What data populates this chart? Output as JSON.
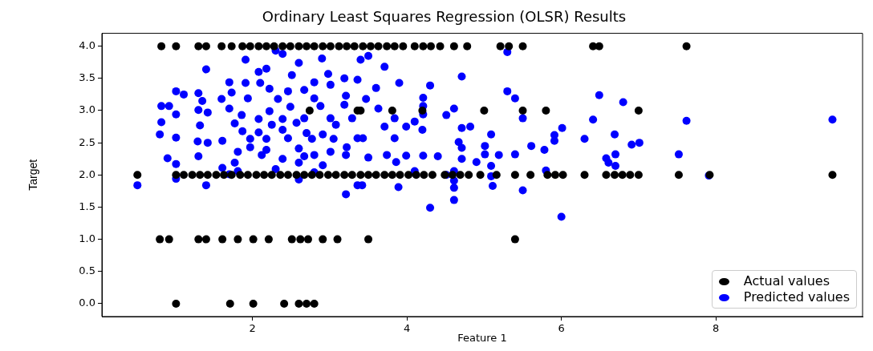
{
  "chart_data": {
    "type": "scatter",
    "title": "Ordinary Least Squares Regression (OLSR) Results",
    "xlabel": "Feature 1",
    "ylabel": "Target",
    "xlim": [
      0.05,
      9.9
    ],
    "ylim": [
      -0.2,
      4.2
    ],
    "xticks": [
      2,
      4,
      6,
      8
    ],
    "yticks": [
      {
        "value": 0,
        "label": "0.0"
      },
      {
        "value": 0.5,
        "label": "0.5"
      },
      {
        "value": 1,
        "label": "1.0"
      },
      {
        "value": 1.5,
        "label": "1.5"
      },
      {
        "value": 2,
        "label": "2.0"
      },
      {
        "value": 2.5,
        "label": "2.5"
      },
      {
        "value": 3,
        "label": "3.0"
      },
      {
        "value": 3.5,
        "label": "3.5"
      },
      {
        "value": 4,
        "label": "4.0"
      }
    ],
    "grid": false,
    "legend": "bottom right",
    "marker": "circle",
    "series": [
      {
        "name": "Actual values",
        "color": "#000000",
        "x": [
          0.82,
          1.01,
          1.3,
          1.4,
          1.6,
          1.73,
          1.87,
          1.97,
          2.08,
          2.18,
          2.28,
          2.39,
          2.49,
          2.6,
          2.7,
          2.8,
          2.91,
          3.01,
          3.12,
          3.22,
          3.32,
          3.43,
          3.53,
          3.63,
          3.74,
          3.84,
          3.95,
          4.1,
          4.21,
          4.31,
          4.43,
          4.61,
          4.78,
          5.21,
          5.32,
          5.5,
          6.41,
          6.49,
          7.62,
          2.74,
          3.36,
          3.4,
          3.81,
          4.2,
          5.0,
          5.5,
          5.8,
          7.0,
          0.51,
          1.01,
          1.11,
          1.22,
          1.32,
          1.42,
          1.53,
          1.63,
          1.73,
          1.84,
          1.94,
          2.05,
          2.15,
          2.25,
          2.36,
          2.46,
          2.57,
          2.67,
          2.77,
          2.87,
          2.98,
          3.08,
          3.19,
          3.29,
          3.4,
          3.5,
          3.6,
          3.71,
          3.81,
          3.91,
          4.02,
          4.12,
          4.22,
          4.33,
          4.49,
          4.59,
          4.69,
          4.8,
          4.95,
          5.16,
          5.4,
          5.6,
          5.82,
          5.92,
          6.02,
          6.3,
          6.58,
          6.69,
          6.79,
          6.89,
          7.0,
          7.52,
          7.92,
          9.51,
          0.8,
          0.92,
          1.3,
          1.4,
          1.61,
          1.81,
          2.01,
          2.21,
          2.51,
          2.62,
          2.72,
          2.91,
          3.1,
          3.5,
          5.4,
          1.01,
          1.71,
          2.01,
          2.41,
          2.6,
          2.7,
          2.8
        ],
        "values": [
          4,
          4,
          4,
          4,
          4,
          4,
          4,
          4,
          4,
          4,
          4,
          4,
          4,
          4,
          4,
          4,
          4,
          4,
          4,
          4,
          4,
          4,
          4,
          4,
          4,
          4,
          4,
          4,
          4,
          4,
          4,
          4,
          4,
          4,
          4,
          4,
          4,
          4,
          4,
          3,
          3,
          3,
          3,
          3,
          3,
          3,
          3,
          3,
          2,
          2,
          2,
          2,
          2,
          2,
          2,
          2,
          2,
          2,
          2,
          2,
          2,
          2,
          2,
          2,
          2,
          2,
          2,
          2,
          2,
          2,
          2,
          2,
          2,
          2,
          2,
          2,
          2,
          2,
          2,
          2,
          2,
          2,
          2,
          2,
          2,
          2,
          2,
          2,
          2,
          2,
          2,
          2,
          2,
          2,
          2,
          2,
          2,
          2,
          2,
          2,
          2,
          2,
          1,
          1,
          1,
          1,
          1,
          1,
          1,
          1,
          1,
          1,
          1,
          1,
          1,
          1,
          1,
          0,
          0,
          0,
          0,
          0,
          0,
          0
        ]
      },
      {
        "name": "Predicted values",
        "color": "#0000ff",
        "x": [
          2.3,
          2.39,
          1.91,
          2.9,
          1.4,
          2.6,
          2.18,
          2.08,
          2.51,
          2.98,
          1.7,
          1.91,
          2.1,
          2.8,
          3.19,
          1.01,
          1.11,
          1.3,
          1.73,
          2.22,
          2.46,
          2.67,
          3.01,
          1.35,
          1.6,
          1.94,
          2.33,
          2.8,
          3.21,
          0.82,
          0.92,
          1.3,
          1.7,
          2.22,
          2.49,
          2.88,
          3.19,
          1.01,
          1.42,
          1.86,
          2.08,
          2.39,
          2.67,
          3.01,
          3.29,
          0.82,
          1.32,
          1.77,
          2.25,
          2.57,
          3.08,
          0.8,
          1.01,
          1.87,
          2.08,
          2.39,
          2.7,
          2.91,
          1.29,
          1.42,
          1.61,
          1.97,
          2.18,
          2.46,
          2.77,
          3.05,
          3.36,
          1.81,
          1.97,
          2.18,
          2.6,
          3.01,
          3.22,
          0.9,
          1.3,
          2.12,
          2.39,
          2.67,
          2.8,
          3.21,
          1.01,
          1.77,
          2.6,
          2.91,
          1.61,
          2.3,
          1.81,
          1.7,
          2.8,
          1.01,
          2.6,
          0.51,
          1.4,
          3.21,
          3.36,
          5.3,
          3.5,
          3.4,
          3.71,
          4.71,
          3.36,
          3.9,
          3.6,
          4.3,
          5.3,
          5.4,
          6.49,
          4.21,
          3.47,
          4.21,
          4.61,
          4.51,
          3.63,
          3.84,
          4.21,
          5.5,
          6.41,
          4.1,
          3.71,
          3.99,
          4.2,
          4.71,
          4.82,
          6.01,
          5.09,
          5.91,
          6.69,
          3.43,
          3.84,
          4.67,
          6.3,
          5.91,
          5.01,
          5.61,
          4.71,
          5.78,
          5.01,
          5.19,
          5.4,
          3.5,
          3.74,
          3.99,
          4.21,
          4.4,
          4.71,
          3.86,
          4.9,
          6.58,
          5.09,
          6.61,
          4.1,
          5.8,
          4.51,
          4.61,
          5.09,
          4.61,
          3.42,
          3.89,
          5.11,
          4.61,
          5.5,
          4.61,
          4.3,
          6.0,
          6.8,
          7.62,
          9.51,
          6.91,
          7.01,
          6.7,
          7.52,
          6.7,
          7.91
        ],
        "values": [
          3.93,
          3.88,
          3.79,
          3.81,
          3.64,
          3.74,
          3.65,
          3.6,
          3.55,
          3.57,
          3.44,
          3.43,
          3.43,
          3.44,
          3.5,
          3.3,
          3.25,
          3.27,
          3.28,
          3.34,
          3.3,
          3.32,
          3.4,
          3.15,
          3.18,
          3.19,
          3.18,
          3.19,
          3.23,
          3.07,
          3.07,
          3.01,
          3.03,
          2.99,
          3.06,
          3.07,
          3.09,
          2.94,
          2.97,
          2.93,
          2.87,
          2.87,
          2.88,
          2.88,
          2.88,
          2.82,
          2.77,
          2.8,
          2.78,
          2.81,
          2.78,
          2.63,
          2.58,
          2.68,
          2.66,
          2.7,
          2.65,
          2.63,
          2.52,
          2.5,
          2.53,
          2.56,
          2.56,
          2.57,
          2.56,
          2.56,
          2.57,
          2.36,
          2.43,
          2.39,
          2.41,
          2.36,
          2.43,
          2.26,
          2.29,
          2.31,
          2.25,
          2.29,
          2.31,
          2.31,
          2.17,
          2.19,
          2.19,
          2.15,
          2.11,
          2.09,
          2.06,
          2.01,
          2.04,
          1.94,
          1.93,
          1.84,
          1.84,
          1.7,
          1.84,
          3.91,
          3.85,
          3.79,
          3.68,
          3.53,
          3.48,
          3.43,
          3.35,
          3.39,
          3.3,
          3.19,
          3.24,
          3.2,
          3.18,
          3.07,
          3.03,
          2.93,
          3.03,
          2.88,
          2.94,
          2.88,
          2.86,
          2.83,
          2.75,
          2.75,
          2.7,
          2.73,
          2.75,
          2.73,
          2.63,
          2.62,
          2.63,
          2.57,
          2.57,
          2.51,
          2.56,
          2.53,
          2.45,
          2.45,
          2.42,
          2.39,
          2.32,
          2.31,
          2.32,
          2.27,
          2.31,
          2.3,
          2.3,
          2.29,
          2.25,
          2.2,
          2.2,
          2.26,
          2.14,
          2.19,
          2.06,
          2.07,
          2.0,
          2.06,
          1.98,
          1.91,
          1.84,
          1.81,
          1.83,
          1.8,
          1.76,
          1.61,
          1.49,
          1.35,
          3.13,
          2.84,
          2.86,
          2.47,
          2.5,
          2.32,
          2.32,
          2.14,
          1.99
        ]
      }
    ]
  }
}
